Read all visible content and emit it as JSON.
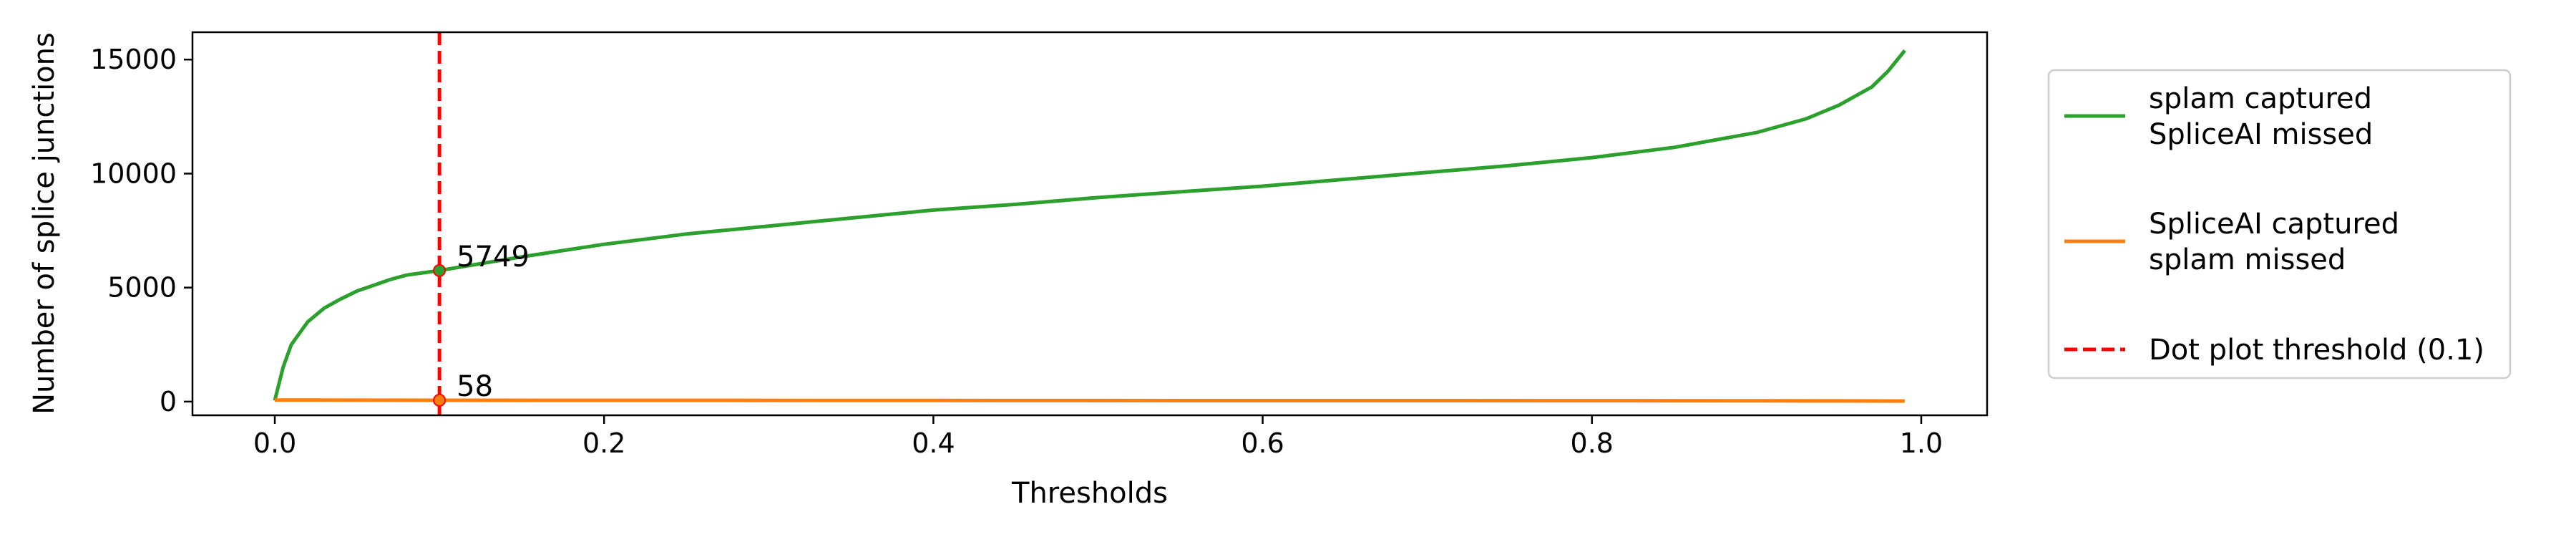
{
  "chart_data": {
    "type": "line",
    "title": "",
    "xlabel": "Thresholds",
    "ylabel": "Number of splice junctions",
    "xlim": [
      -0.05,
      1.04
    ],
    "ylim": [
      -600,
      16200
    ],
    "x_ticks": [
      0.0,
      0.2,
      0.4,
      0.6,
      0.8,
      1.0
    ],
    "x_tick_labels": [
      "0.0",
      "0.2",
      "0.4",
      "0.6",
      "0.8",
      "1.0"
    ],
    "y_ticks": [
      0,
      5000,
      10000,
      15000
    ],
    "y_tick_labels": [
      "0",
      "5000",
      "10000",
      "15000"
    ],
    "grid": false,
    "legend_position": "outside-right",
    "series": [
      {
        "name": "splam captured\nSpliceAI missed",
        "color": "#2ca02c",
        "x": [
          0.0,
          0.005,
          0.01,
          0.02,
          0.03,
          0.04,
          0.05,
          0.06,
          0.07,
          0.08,
          0.09,
          0.1,
          0.15,
          0.2,
          0.25,
          0.3,
          0.35,
          0.4,
          0.45,
          0.5,
          0.55,
          0.6,
          0.65,
          0.7,
          0.75,
          0.8,
          0.85,
          0.9,
          0.93,
          0.95,
          0.97,
          0.98,
          0.99
        ],
        "y": [
          50,
          1500,
          2500,
          3500,
          4100,
          4500,
          4850,
          5100,
          5350,
          5550,
          5650,
          5749,
          6350,
          6900,
          7350,
          7700,
          8050,
          8400,
          8650,
          8950,
          9200,
          9450,
          9750,
          10050,
          10350,
          10700,
          11150,
          11800,
          12400,
          13000,
          13800,
          14500,
          15400
        ]
      },
      {
        "name": "SpliceAI captured\nsplam missed",
        "color": "#ff7f0e",
        "x": [
          0.0,
          0.02,
          0.05,
          0.1,
          0.2,
          0.4,
          0.6,
          0.8,
          0.9,
          0.95,
          0.99
        ],
        "y": [
          70,
          65,
          62,
          58,
          55,
          50,
          45,
          40,
          35,
          30,
          25
        ]
      }
    ],
    "threshold_line": {
      "name": "Dot plot threshold (0.1)",
      "x": 0.1,
      "color": "#ff0000"
    },
    "annotations": [
      {
        "x": 0.1,
        "y": 5749,
        "text": "5749",
        "color": "#2ca02c"
      },
      {
        "x": 0.1,
        "y": 58,
        "text": "58",
        "color": "#ff7f0e"
      }
    ]
  }
}
